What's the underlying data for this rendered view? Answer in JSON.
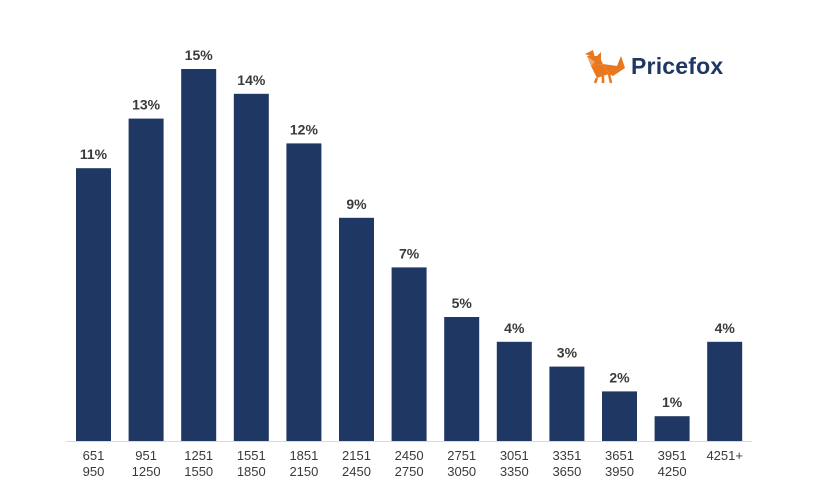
{
  "brand": {
    "name": "Pricefox",
    "accent_color": "#e8771e",
    "text_color": "#1f3763",
    "icon": "fox-icon"
  },
  "chart_data": {
    "type": "bar",
    "categories": [
      [
        "651",
        "950"
      ],
      [
        "951",
        "1250"
      ],
      [
        "1251",
        "1550"
      ],
      [
        "1551",
        "1850"
      ],
      [
        "1851",
        "2150"
      ],
      [
        "2151",
        "2450"
      ],
      [
        "2450",
        "2750"
      ],
      [
        "2751",
        "3050"
      ],
      [
        "3051",
        "3350"
      ],
      [
        "3351",
        "3650"
      ],
      [
        "3651",
        "3950"
      ],
      [
        "3951",
        "4250"
      ],
      [
        "4251+"
      ]
    ],
    "values": [
      11,
      13,
      15,
      14,
      12,
      9,
      7,
      5,
      4,
      3,
      2,
      1,
      4
    ],
    "value_labels": [
      "11%",
      "13%",
      "15%",
      "14%",
      "12%",
      "9%",
      "7%",
      "5%",
      "4%",
      "3%",
      "2%",
      "1%",
      "4%"
    ],
    "unit": "%",
    "ylim": [
      0,
      15
    ],
    "bar_color": "#1f3763",
    "grid": false,
    "title": "",
    "xlabel": "",
    "ylabel": ""
  }
}
